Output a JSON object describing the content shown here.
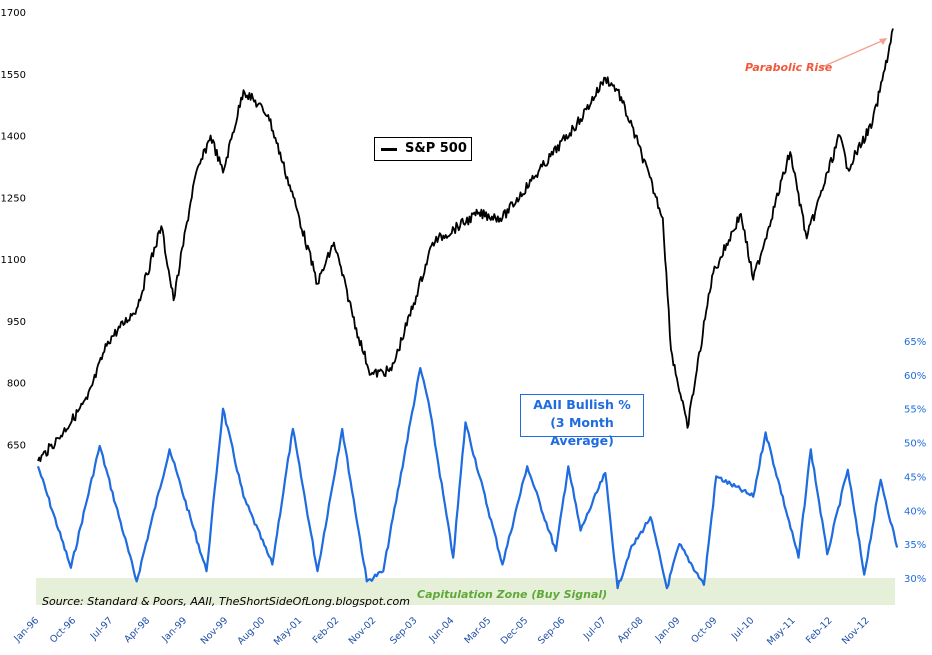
{
  "chart_data": [
    {
      "type": "line",
      "series": [
        {
          "name": "S&P 500",
          "color": "#000000"
        }
      ],
      "x": [
        "Jan-96",
        "Jun-96",
        "Jan-97",
        "Jun-97",
        "Jan-98",
        "Jul-98",
        "Oct-98",
        "Mar-99",
        "Jul-99",
        "Oct-99",
        "Mar-00",
        "Sep-00",
        "Apr-01",
        "Sep-01",
        "Jan-02",
        "Jul-02",
        "Oct-02",
        "Mar-03",
        "Sep-03",
        "Jan-04",
        "Dec-04",
        "Jun-05",
        "Jan-06",
        "Jan-07",
        "Jul-07",
        "Oct-07",
        "Mar-08",
        "Sep-08",
        "Nov-08",
        "Mar-09",
        "Sep-09",
        "Apr-10",
        "Jul-10",
        "Apr-11",
        "Aug-11",
        "Apr-12",
        "Jun-12",
        "Dec-12",
        "Mar-13",
        "May-13"
      ],
      "values": [
        610,
        665,
        760,
        900,
        980,
        1180,
        1000,
        1290,
        1400,
        1310,
        1510,
        1450,
        1220,
        1040,
        1140,
        910,
        820,
        830,
        1010,
        1140,
        1210,
        1200,
        1290,
        1440,
        1540,
        1510,
        1380,
        1200,
        880,
        690,
        1060,
        1210,
        1050,
        1360,
        1150,
        1400,
        1320,
        1430,
        1560,
        1660
      ],
      "ylim": [
        600,
        1700
      ],
      "yticks": [
        "650",
        "800",
        "950",
        "1100",
        "1250",
        "1400",
        "1550",
        "1700"
      ]
    },
    {
      "type": "line",
      "series": [
        {
          "name": "AAII Bullish %",
          "color": "#1f6be0"
        }
      ],
      "x": [
        "Jan-96",
        "Sep-96",
        "Apr-97",
        "Jan-98",
        "Sep-98",
        "Jun-99",
        "Oct-99",
        "Mar-00",
        "Oct-00",
        "Mar-01",
        "Sep-01",
        "Mar-02",
        "Sep-02",
        "Jan-03",
        "Oct-03",
        "Dec-03",
        "Jun-04",
        "Sep-04",
        "Jun-05",
        "Dec-05",
        "Jul-06",
        "Oct-06",
        "Jan-07",
        "Jul-07",
        "Oct-07",
        "Jan-08",
        "Jun-08",
        "Oct-08",
        "Jan-09",
        "Jul-09",
        "Oct-09",
        "Jul-10",
        "Oct-10",
        "Jun-11",
        "Sep-11",
        "Jan-12",
        "Jun-12",
        "Oct-12",
        "Feb-13",
        "Jun-13"
      ],
      "values": [
        46.5,
        31.5,
        49.5,
        29.5,
        49,
        31,
        55,
        42,
        32,
        52,
        31,
        52,
        29.5,
        31,
        61,
        56,
        33,
        53,
        32,
        46.5,
        34,
        46.5,
        37,
        45.5,
        28.5,
        34,
        39,
        28.5,
        35,
        29,
        45,
        42,
        51.5,
        33,
        49,
        33.5,
        46,
        30.5,
        44.5,
        34.5
      ],
      "ylim": [
        30,
        65
      ],
      "yticks": [
        "30%",
        "35%",
        "40%",
        "45%",
        "50%",
        "55%",
        "60%",
        "65%"
      ]
    }
  ],
  "x_axis_labels": [
    "Jan-96",
    "Oct-96",
    "Jul-97",
    "Apr-98",
    "Jan-99",
    "Nov-99",
    "Aug-00",
    "May-01",
    "Feb-02",
    "Nov-02",
    "Sep-03",
    "Jun-04",
    "Mar-05",
    "Dec-05",
    "Sep-06",
    "Jul-07",
    "Apr-08",
    "Jan-09",
    "Oct-09",
    "Jul-10",
    "May-11",
    "Feb-12",
    "Nov-12"
  ],
  "legend": {
    "sp500": "S&P 500",
    "aaii_line1": "AAII Bullish %",
    "aaii_line2": "(3 Month Average)"
  },
  "annotations": {
    "parabolic": "Parabolic Rise",
    "capitulation": "Capitulation Zone (Buy Signal)",
    "source": "Source: Standard & Poors, AAII, TheShortSideOfLong.blogspot.com"
  },
  "colors": {
    "sp500": "#000000",
    "aaii": "#1f6be0",
    "capitulation_zone": "#e6f0d8",
    "capitulation_text": "#5fa83a",
    "annotation": "#f05a3c"
  }
}
